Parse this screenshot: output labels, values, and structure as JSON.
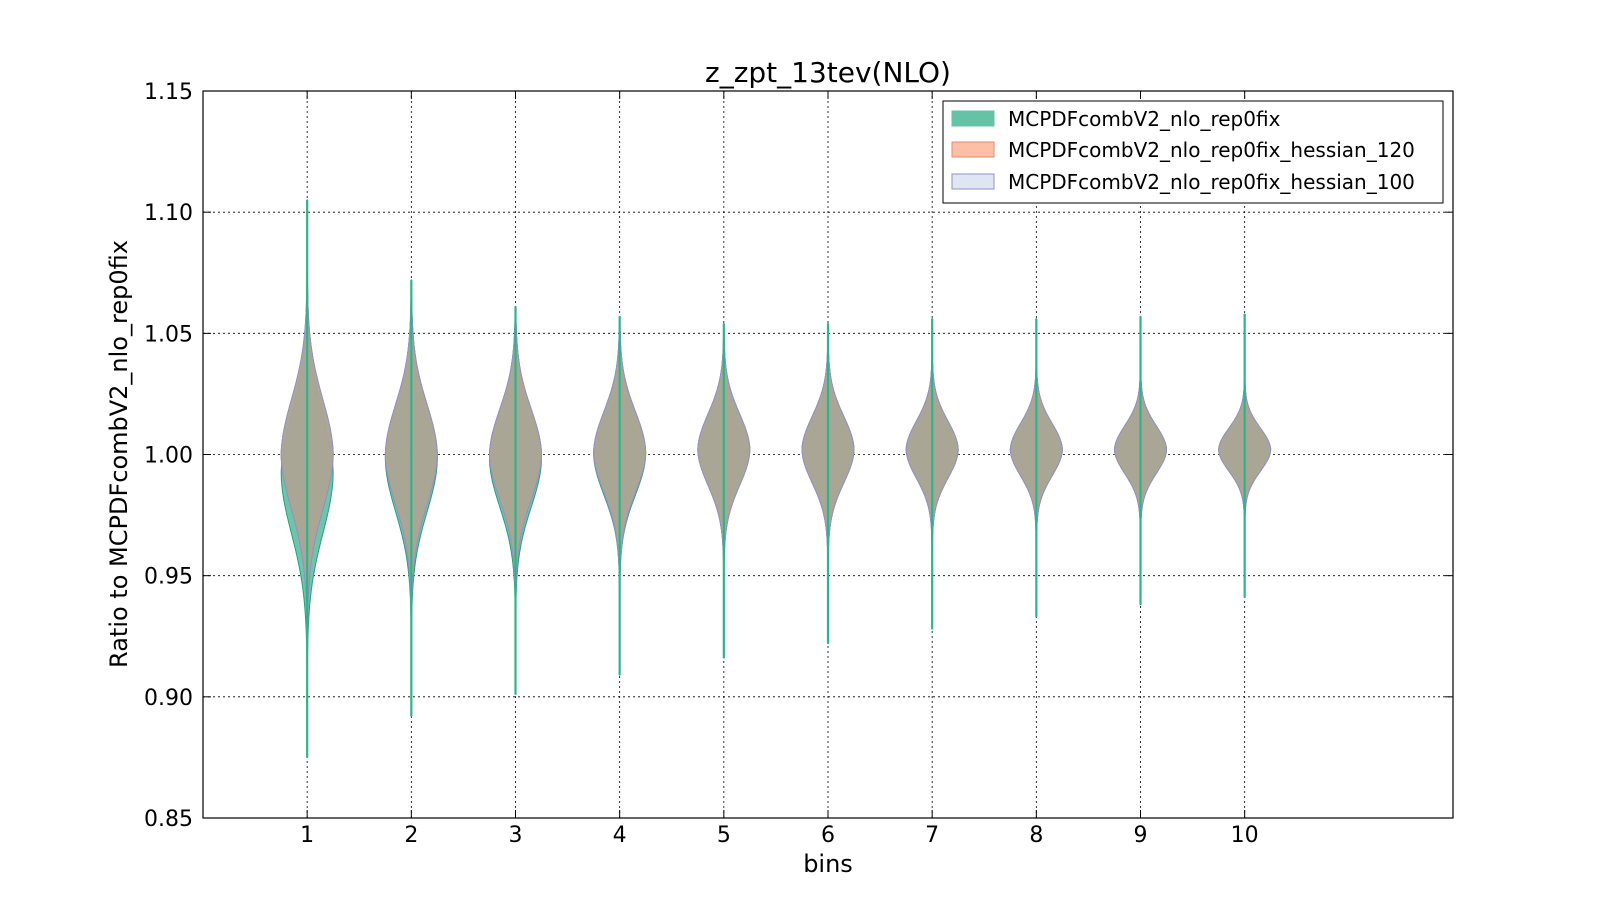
{
  "chart_data": {
    "type": "violin",
    "title": "z_zpt_13tev(NLO)",
    "xlabel": "bins",
    "ylabel": "Ratio to MCPDFcombV2_nlo_rep0fix",
    "categories": [
      "1",
      "2",
      "3",
      "4",
      "5",
      "6",
      "7",
      "8",
      "9",
      "10"
    ],
    "x": [
      1,
      2,
      3,
      4,
      5,
      6,
      7,
      8,
      9,
      10
    ],
    "xlim": [
      0,
      12
    ],
    "ylim": [
      0.85,
      1.15
    ],
    "yticks": [
      "0.85",
      "0.90",
      "0.95",
      "1.00",
      "1.05",
      "1.10",
      "1.15"
    ],
    "grid": true,
    "legend_position": "top-right",
    "series": [
      {
        "name": "MCPDFcombV2_nlo_rep0fix",
        "color": "#66c2a5",
        "edge": "#2a9d7f",
        "min": [
          0.875,
          0.892,
          0.901,
          0.909,
          0.916,
          0.922,
          0.928,
          0.933,
          0.938,
          0.941
        ],
        "max": [
          1.105,
          1.072,
          1.061,
          1.057,
          1.054,
          1.054,
          1.056,
          1.056,
          1.057,
          1.058
        ],
        "center": [
          0.992,
          0.998,
          0.998,
          1.0,
          1.002,
          1.002,
          1.002,
          1.002,
          1.002,
          1.002
        ],
        "sigma": [
          0.025,
          0.022,
          0.02,
          0.017,
          0.015,
          0.014,
          0.012,
          0.011,
          0.01,
          0.009
        ]
      },
      {
        "name": "MCPDFcombV2_nlo_rep0fix_hessian_120",
        "color": "#fc8d62",
        "edge": "#e9886a",
        "min": [
          0.92,
          0.93,
          0.94,
          0.95,
          0.955,
          0.96,
          0.962,
          0.966,
          0.968,
          0.97
        ],
        "max": [
          1.08,
          1.065,
          1.058,
          1.052,
          1.048,
          1.045,
          1.04,
          1.038,
          1.032,
          1.03
        ],
        "center": [
          1.0,
          1.0,
          1.0,
          1.001,
          1.002,
          1.002,
          1.002,
          1.002,
          1.002,
          1.002
        ],
        "sigma": [
          0.023,
          0.021,
          0.019,
          0.017,
          0.015,
          0.014,
          0.012,
          0.011,
          0.01,
          0.009
        ]
      },
      {
        "name": "MCPDFcombV2_nlo_rep0fix_hessian_100",
        "color": "#e0e6f1",
        "edge": "#8e92c9",
        "min": [
          0.918,
          0.928,
          0.938,
          0.948,
          0.953,
          0.958,
          0.96,
          0.964,
          0.966,
          0.968
        ],
        "max": [
          1.082,
          1.066,
          1.058,
          1.052,
          1.048,
          1.045,
          1.04,
          1.038,
          1.032,
          1.03
        ],
        "center": [
          1.0,
          1.0,
          1.0,
          1.001,
          1.002,
          1.002,
          1.002,
          1.002,
          1.002,
          1.002
        ],
        "sigma": [
          0.023,
          0.021,
          0.019,
          0.017,
          0.015,
          0.014,
          0.012,
          0.011,
          0.01,
          0.009
        ]
      }
    ],
    "blend_color": "#a6a292"
  }
}
